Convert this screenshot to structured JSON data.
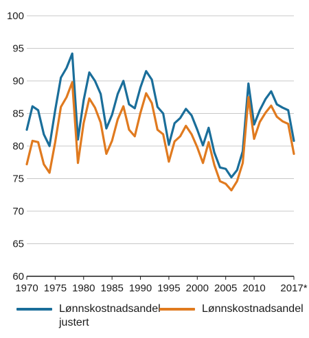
{
  "chart_data": {
    "type": "line",
    "title": "",
    "xlabel": "",
    "ylabel": "",
    "ylim": [
      60,
      100
    ],
    "y_ticks": [
      60,
      65,
      70,
      75,
      80,
      85,
      90,
      95,
      100
    ],
    "x_ticks": [
      1970,
      1975,
      1980,
      1985,
      1990,
      1995,
      2000,
      2005,
      2010,
      2017
    ],
    "x_tick_labels": [
      "1970",
      "1975",
      "1980",
      "1985",
      "1990",
      "1995",
      "2000",
      "2005",
      "2010",
      "2017*"
    ],
    "xlim": [
      1970,
      2017
    ],
    "grid": "horizontal",
    "legend": "bottom",
    "x": [
      1970,
      1971,
      1972,
      1973,
      1974,
      1975,
      1976,
      1977,
      1978,
      1979,
      1980,
      1981,
      1982,
      1983,
      1984,
      1985,
      1986,
      1987,
      1988,
      1989,
      1990,
      1991,
      1992,
      1993,
      1994,
      1995,
      1996,
      1997,
      1998,
      1999,
      2000,
      2001,
      2002,
      2003,
      2004,
      2005,
      2006,
      2007,
      2008,
      2009,
      2010,
      2011,
      2012,
      2013,
      2014,
      2015,
      2016,
      2017
    ],
    "series": [
      {
        "name": "Lønnskostnadsandel justert",
        "color": "#1a6e9a",
        "values": [
          82.5,
          86.1,
          85.5,
          81.8,
          80.0,
          85.5,
          90.5,
          92.0,
          94.2,
          81.0,
          87.0,
          91.3,
          90.0,
          88.0,
          82.7,
          84.8,
          88.0,
          90.0,
          86.4,
          85.8,
          89.0,
          91.5,
          90.2,
          86.0,
          85.0,
          80.2,
          83.5,
          84.3,
          85.7,
          84.7,
          82.5,
          80.1,
          82.8,
          79.0,
          76.7,
          76.5,
          75.2,
          76.3,
          79.2,
          89.6,
          83.3,
          85.5,
          87.2,
          88.4,
          86.4,
          85.9,
          85.5,
          80.8
        ]
      },
      {
        "name": "Lønnskostnadsandel",
        "color": "#e07a1f",
        "values": [
          77.2,
          80.8,
          80.6,
          77.2,
          75.9,
          80.6,
          86.0,
          87.5,
          89.8,
          77.4,
          83.5,
          87.3,
          85.9,
          83.6,
          78.8,
          80.8,
          84.1,
          86.1,
          82.5,
          81.5,
          85.1,
          88.1,
          86.6,
          82.5,
          81.8,
          77.6,
          80.7,
          81.5,
          83.1,
          81.8,
          79.8,
          77.4,
          80.6,
          77.1,
          74.6,
          74.2,
          73.2,
          74.6,
          77.4,
          87.5,
          81.1,
          83.7,
          85.1,
          86.2,
          84.5,
          83.8,
          83.4,
          78.8
        ]
      }
    ]
  }
}
